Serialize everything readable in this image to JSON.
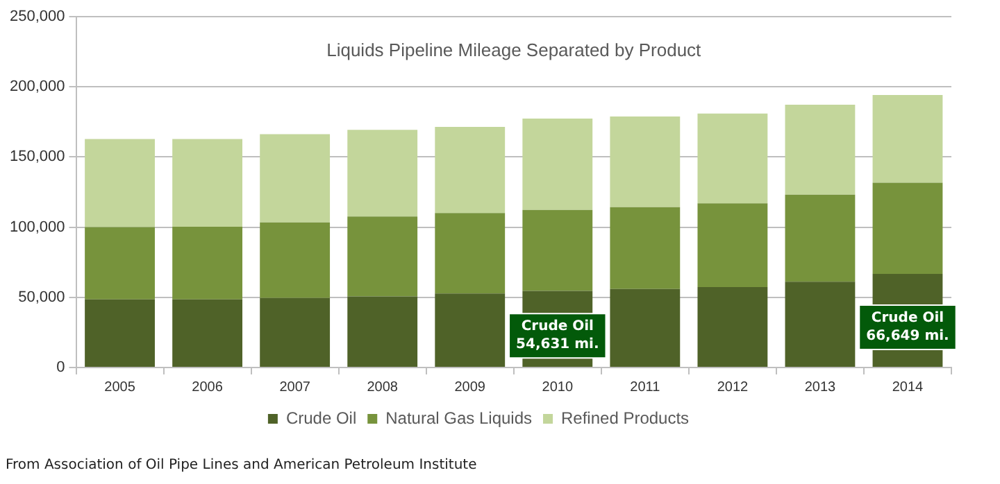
{
  "chart_data": {
    "type": "bar",
    "title": "Liquids Pipeline Mileage Separated by Product",
    "stacked": true,
    "categories": [
      "2005",
      "2006",
      "2007",
      "2008",
      "2009",
      "2010",
      "2011",
      "2012",
      "2013",
      "2014"
    ],
    "series": [
      {
        "name": "Crude Oil",
        "color": "#4f6228",
        "values": [
          48600,
          48600,
          49500,
          50700,
          52800,
          54631,
          55900,
          57300,
          61100,
          66649
        ],
        "value_labels": [
          null,
          null,
          null,
          null,
          null,
          "Crude Oil\n54,631 mi.",
          null,
          null,
          null,
          "Crude Oil\n66,649 mi."
        ]
      },
      {
        "name": "Natural Gas Liquids",
        "color": "#77933c",
        "values": [
          51400,
          51700,
          53900,
          56900,
          57300,
          57600,
          58400,
          59700,
          62100,
          65000
        ]
      },
      {
        "name": "Refined Products",
        "color": "#c3d69b",
        "values": [
          62800,
          62500,
          62900,
          61800,
          61400,
          65200,
          64500,
          63900,
          64000,
          62500
        ]
      }
    ],
    "ylim": [
      0,
      250000
    ],
    "yticks": [
      {
        "value": 0,
        "label": "0"
      },
      {
        "value": 50000,
        "label": "50,000"
      },
      {
        "value": 100000,
        "label": "100,000"
      },
      {
        "value": 150000,
        "label": "150,000"
      },
      {
        "value": 200000,
        "label": "200,000"
      },
      {
        "value": 250000,
        "label": "250,000"
      }
    ],
    "grid": "y",
    "legend": "bottom",
    "annotations": [
      "From Association of Oil Pipe Lines and American Petroleum Institute"
    ]
  }
}
